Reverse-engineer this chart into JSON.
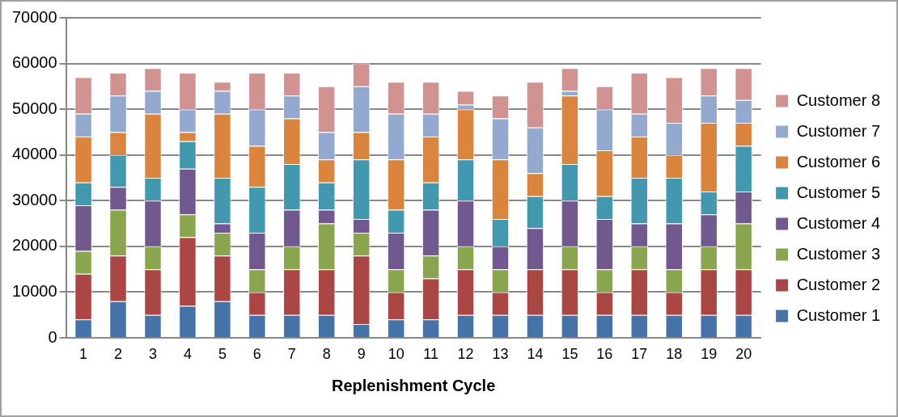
{
  "chart_data": {
    "type": "bar",
    "stacked": true,
    "xlabel": "Replenishment Cycle",
    "categories": [
      "1",
      "2",
      "3",
      "4",
      "5",
      "6",
      "7",
      "8",
      "9",
      "10",
      "11",
      "12",
      "13",
      "14",
      "15",
      "16",
      "17",
      "18",
      "19",
      "20"
    ],
    "ylim": [
      0,
      70000
    ],
    "yticks": [
      0,
      10000,
      20000,
      30000,
      40000,
      50000,
      60000,
      70000
    ],
    "grid": "y",
    "legend": "right",
    "series": [
      {
        "name": "Customer 1",
        "color": "#4572a7",
        "values": [
          4000,
          8000,
          5000,
          7000,
          8000,
          5000,
          5000,
          5000,
          3000,
          4000,
          4000,
          5000,
          5000,
          5000,
          5000,
          5000,
          5000,
          5000,
          5000,
          5000
        ]
      },
      {
        "name": "Customer 2",
        "color": "#aa4643",
        "values": [
          10000,
          10000,
          10000,
          15000,
          10000,
          5000,
          10000,
          10000,
          15000,
          6000,
          9000,
          10000,
          5000,
          10000,
          10000,
          5000,
          10000,
          5000,
          10000,
          10000
        ]
      },
      {
        "name": "Customer 3",
        "color": "#89a54e",
        "values": [
          5000,
          10000,
          5000,
          5000,
          5000,
          5000,
          5000,
          10000,
          5000,
          5000,
          5000,
          5000,
          5000,
          0,
          5000,
          5000,
          5000,
          5000,
          5000,
          10000
        ]
      },
      {
        "name": "Customer 4",
        "color": "#71588f",
        "values": [
          10000,
          5000,
          10000,
          10000,
          2000,
          8000,
          8000,
          3000,
          3000,
          8000,
          10000,
          10000,
          5000,
          9000,
          10000,
          11000,
          5000,
          10000,
          7000,
          7000
        ]
      },
      {
        "name": "Customer 5",
        "color": "#4198af",
        "values": [
          5000,
          7000,
          5000,
          6000,
          10000,
          10000,
          10000,
          6000,
          13000,
          5000,
          6000,
          9000,
          6000,
          7000,
          8000,
          5000,
          10000,
          10000,
          5000,
          10000
        ]
      },
      {
        "name": "Customer 6",
        "color": "#db843d",
        "values": [
          10000,
          5000,
          14000,
          2000,
          14000,
          9000,
          10000,
          5000,
          6000,
          11000,
          10000,
          11000,
          13000,
          5000,
          15000,
          10000,
          9000,
          5000,
          15000,
          5000
        ]
      },
      {
        "name": "Customer 7",
        "color": "#93a9cf",
        "values": [
          5000,
          8000,
          5000,
          5000,
          5000,
          8000,
          5000,
          6000,
          10000,
          10000,
          5000,
          1000,
          9000,
          10000,
          1000,
          9000,
          5000,
          7000,
          6000,
          5000
        ]
      },
      {
        "name": "Customer 8",
        "color": "#d19392",
        "values": [
          8000,
          5000,
          5000,
          8000,
          2000,
          8000,
          5000,
          10000,
          5000,
          7000,
          7000,
          3000,
          5000,
          10000,
          5000,
          5000,
          9000,
          10000,
          6000,
          7000
        ]
      }
    ]
  }
}
